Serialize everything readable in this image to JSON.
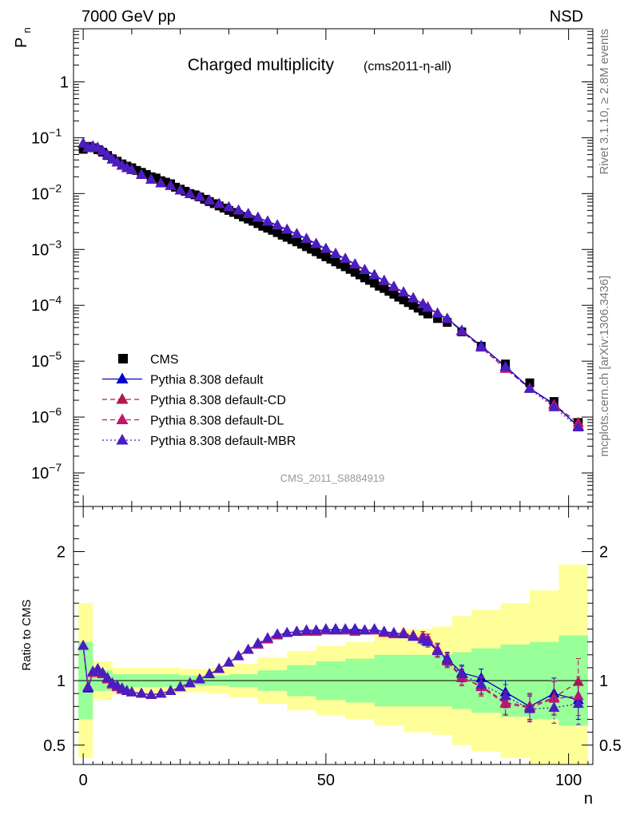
{
  "header": {
    "left": "7000 GeV pp",
    "right": "NSD"
  },
  "title": {
    "main": "Charged multiplicity",
    "sub": "(cms2011-η-all)"
  },
  "side_labels": {
    "rivet": "Rivet 3.1.10, ≥ 2.8M events",
    "mcplots": "mcplots.cern.ch [arXiv:1306.3436]"
  },
  "analysis_id": "CMS_2011_S8884919",
  "axes": {
    "top_ylabel_main": "P",
    "top_ylabel_sub": "n",
    "bottom_ylabel": "Ratio to CMS",
    "xlabel": "n",
    "top_yticks": [
      {
        "exp": -7,
        "label_base": "10",
        "label_exp": "−7"
      },
      {
        "exp": -6,
        "label_base": "10",
        "label_exp": "−6"
      },
      {
        "exp": -5,
        "label_base": "10",
        "label_exp": "−5"
      },
      {
        "exp": -4,
        "label_base": "10",
        "label_exp": "−4"
      },
      {
        "exp": -3,
        "label_base": "10",
        "label_exp": "−3"
      },
      {
        "exp": -2,
        "label_base": "10",
        "label_exp": "−2"
      },
      {
        "exp": -1,
        "label_base": "10",
        "label_exp": "−1"
      },
      {
        "exp": 0,
        "label_base": "1",
        "label_exp": ""
      }
    ],
    "ratio_yticks": [
      {
        "value": 0.5,
        "label": "0.5"
      },
      {
        "value": 1,
        "label": "1"
      },
      {
        "value": 2,
        "label": "2"
      }
    ],
    "xticks": [
      {
        "value": 0,
        "label": "0"
      },
      {
        "value": 50,
        "label": "50"
      },
      {
        "value": 100,
        "label": "100"
      }
    ]
  },
  "legend": [
    {
      "label": "CMS",
      "color": "#000000",
      "marker": "square",
      "line": "none"
    },
    {
      "label": "Pythia 8.308 default",
      "color": "#0000cc",
      "marker": "triangle",
      "line": "solid"
    },
    {
      "label": "Pythia 8.308 default-CD",
      "color": "#b3174d",
      "marker": "triangle",
      "line": "dashed"
    },
    {
      "label": "Pythia 8.308 default-DL",
      "color": "#c0176e",
      "marker": "triangle",
      "line": "dashed"
    },
    {
      "label": "Pythia 8.308 default-MBR",
      "color": "#4a1ec0",
      "marker": "triangle",
      "line": "dotted"
    }
  ],
  "chart_data": {
    "type": "scatter",
    "title": "Charged multiplicity",
    "xlabel": "n",
    "ylabel": "P_n",
    "xlim": [
      -2,
      105
    ],
    "ylim_log10": [
      -7.6,
      0.95
    ],
    "ratio_ylim": [
      0.35,
      2.35
    ],
    "yscale": "log",
    "legend_placement": "bottom-left",
    "data": {
      "name": "CMS",
      "x": [
        0,
        1,
        2,
        3,
        4,
        5,
        6,
        7,
        8,
        9,
        10,
        11,
        12,
        13,
        14,
        15,
        16,
        17,
        18,
        19,
        20,
        21,
        22,
        23,
        24,
        25,
        26,
        27,
        28,
        29,
        30,
        31,
        32,
        33,
        34,
        35,
        36,
        37,
        38,
        39,
        40,
        41,
        42,
        43,
        44,
        45,
        46,
        47,
        48,
        49,
        50,
        51,
        52,
        53,
        54,
        55,
        56,
        57,
        58,
        59,
        60,
        61,
        62,
        63,
        64,
        65,
        66,
        67,
        68,
        69,
        70,
        71,
        73,
        75,
        78,
        82,
        87,
        92,
        97,
        102
      ],
      "y": [
        0.062,
        0.07,
        0.066,
        0.061,
        0.055,
        0.048,
        0.042,
        0.038,
        0.034,
        0.031,
        0.029,
        0.026,
        0.024,
        0.022,
        0.02,
        0.019,
        0.017,
        0.016,
        0.015,
        0.013,
        0.012,
        0.011,
        0.01,
        0.0095,
        0.0087,
        0.0079,
        0.0072,
        0.0066,
        0.006,
        0.0055,
        0.005,
        0.0046,
        0.0042,
        0.0038,
        0.0035,
        0.0032,
        0.0029,
        0.0026,
        0.0024,
        0.0022,
        0.002,
        0.0018,
        0.00165,
        0.0015,
        0.00137,
        0.00124,
        0.00112,
        0.00101,
        0.00091,
        0.00082,
        0.00074,
        0.00067,
        0.0006,
        0.00054,
        0.00049,
        0.00044,
        0.00039,
        0.00035,
        0.00031,
        0.00028,
        0.00025,
        0.00022,
        0.0002,
        0.000178,
        0.000158,
        0.00014,
        0.000125,
        0.000112,
        0.0001,
        8.9e-05,
        7.9e-05,
        7e-05,
        5.8e-05,
        4.95e-05,
        3.35e-05,
        1.85e-05,
        8.9e-06,
        4.1e-06,
        1.9e-06,
        8e-07
      ]
    },
    "data_display_scale": 1.0,
    "ratio_series": [
      {
        "name": "Pythia 8.308 default",
        "x": [
          0,
          1,
          2,
          3,
          4,
          5,
          6,
          7,
          8,
          9,
          10,
          12,
          14,
          16,
          18,
          20,
          22,
          24,
          26,
          28,
          30,
          32,
          34,
          36,
          38,
          40,
          42,
          44,
          46,
          48,
          50,
          52,
          54,
          56,
          58,
          60,
          62,
          64,
          66,
          68,
          70,
          71,
          73,
          75,
          78,
          82,
          87,
          92,
          97,
          102
        ],
        "y": [
          1.27,
          0.94,
          1.07,
          1.09,
          1.06,
          1.02,
          0.98,
          0.96,
          0.94,
          0.92,
          0.91,
          0.9,
          0.89,
          0.9,
          0.92,
          0.95,
          0.98,
          1.01,
          1.05,
          1.09,
          1.14,
          1.19,
          1.24,
          1.28,
          1.32,
          1.35,
          1.37,
          1.38,
          1.39,
          1.39,
          1.39,
          1.4,
          1.39,
          1.4,
          1.39,
          1.39,
          1.38,
          1.37,
          1.36,
          1.34,
          1.32,
          1.3,
          1.23,
          1.17,
          1.06,
          1.02,
          0.91,
          0.8,
          0.9,
          0.85
        ],
        "err": [
          0,
          0,
          0,
          0,
          0,
          0,
          0,
          0,
          0,
          0,
          0,
          0,
          0,
          0,
          0,
          0,
          0,
          0,
          0,
          0,
          0,
          0,
          0,
          0,
          0,
          0,
          0,
          0,
          0,
          0,
          0,
          0,
          0,
          0,
          0,
          0,
          0,
          0,
          0,
          0,
          0.04,
          0.04,
          0.05,
          0.05,
          0.06,
          0.07,
          0.09,
          0.1,
          0.12,
          0.15
        ]
      },
      {
        "name": "Pythia 8.308 default-CD",
        "x": [
          0,
          1,
          2,
          3,
          4,
          5,
          6,
          7,
          8,
          9,
          10,
          12,
          14,
          16,
          18,
          20,
          22,
          24,
          26,
          28,
          30,
          32,
          34,
          36,
          38,
          40,
          42,
          44,
          46,
          48,
          50,
          52,
          54,
          56,
          58,
          60,
          62,
          64,
          66,
          68,
          70,
          71,
          73,
          75,
          78,
          82,
          87,
          92,
          97,
          102
        ],
        "y": [
          1.27,
          0.95,
          1.06,
          1.08,
          1.05,
          1.01,
          0.97,
          0.95,
          0.93,
          0.92,
          0.91,
          0.9,
          0.89,
          0.9,
          0.92,
          0.95,
          0.98,
          1.01,
          1.05,
          1.09,
          1.14,
          1.19,
          1.24,
          1.28,
          1.32,
          1.35,
          1.37,
          1.38,
          1.38,
          1.38,
          1.39,
          1.39,
          1.39,
          1.38,
          1.39,
          1.39,
          1.37,
          1.36,
          1.37,
          1.35,
          1.34,
          1.32,
          1.24,
          1.15,
          1.02,
          0.96,
          0.83,
          0.8,
          0.87,
          0.99
        ],
        "err": [
          0,
          0,
          0,
          0,
          0,
          0,
          0,
          0,
          0,
          0,
          0,
          0,
          0,
          0,
          0,
          0,
          0,
          0,
          0,
          0,
          0,
          0,
          0,
          0,
          0,
          0,
          0,
          0,
          0,
          0,
          0,
          0,
          0,
          0,
          0,
          0,
          0,
          0,
          0,
          0,
          0.04,
          0.04,
          0.05,
          0.05,
          0.06,
          0.07,
          0.09,
          0.1,
          0.13,
          0.18
        ]
      },
      {
        "name": "Pythia 8.308 default-DL",
        "x": [
          0,
          1,
          2,
          3,
          4,
          5,
          6,
          7,
          8,
          9,
          10,
          12,
          14,
          16,
          18,
          20,
          22,
          24,
          26,
          28,
          30,
          32,
          34,
          36,
          38,
          40,
          42,
          44,
          46,
          48,
          50,
          52,
          54,
          56,
          58,
          60,
          62,
          64,
          66,
          68,
          70,
          71,
          73,
          75,
          78,
          82,
          87,
          92,
          97,
          102
        ],
        "y": [
          1.27,
          0.95,
          1.06,
          1.08,
          1.05,
          1.01,
          0.97,
          0.95,
          0.93,
          0.92,
          0.91,
          0.9,
          0.89,
          0.9,
          0.92,
          0.95,
          0.98,
          1.01,
          1.05,
          1.09,
          1.14,
          1.19,
          1.24,
          1.28,
          1.32,
          1.35,
          1.37,
          1.38,
          1.38,
          1.38,
          1.39,
          1.39,
          1.39,
          1.38,
          1.39,
          1.39,
          1.37,
          1.36,
          1.37,
          1.35,
          1.34,
          1.32,
          1.24,
          1.16,
          1.03,
          0.95,
          0.82,
          0.79,
          0.86,
          0.88
        ],
        "err": [
          0,
          0,
          0,
          0,
          0,
          0,
          0,
          0,
          0,
          0,
          0,
          0,
          0,
          0,
          0,
          0,
          0,
          0,
          0,
          0,
          0,
          0,
          0,
          0,
          0,
          0,
          0,
          0,
          0,
          0,
          0,
          0,
          0,
          0,
          0,
          0,
          0,
          0,
          0,
          0,
          0.04,
          0.04,
          0.05,
          0.05,
          0.06,
          0.07,
          0.09,
          0.1,
          0.13,
          0.15
        ]
      },
      {
        "name": "Pythia 8.308 default-MBR",
        "x": [
          0,
          1,
          2,
          3,
          4,
          5,
          6,
          7,
          8,
          9,
          10,
          12,
          14,
          16,
          18,
          20,
          22,
          24,
          26,
          28,
          30,
          32,
          34,
          36,
          38,
          40,
          42,
          44,
          46,
          48,
          50,
          52,
          54,
          56,
          58,
          60,
          62,
          64,
          66,
          68,
          70,
          71,
          73,
          75,
          78,
          82,
          87,
          92,
          97,
          102
        ],
        "y": [
          1.27,
          0.95,
          1.07,
          1.09,
          1.06,
          1.02,
          0.98,
          0.96,
          0.94,
          0.92,
          0.91,
          0.9,
          0.89,
          0.9,
          0.92,
          0.95,
          0.98,
          1.01,
          1.05,
          1.09,
          1.14,
          1.19,
          1.24,
          1.29,
          1.33,
          1.36,
          1.37,
          1.38,
          1.39,
          1.39,
          1.4,
          1.39,
          1.4,
          1.39,
          1.39,
          1.4,
          1.38,
          1.37,
          1.36,
          1.34,
          1.32,
          1.3,
          1.23,
          1.16,
          1.05,
          0.97,
          0.88,
          0.78,
          0.79,
          0.82
        ],
        "err": [
          0,
          0,
          0,
          0,
          0,
          0,
          0,
          0,
          0,
          0,
          0,
          0,
          0,
          0,
          0,
          0,
          0,
          0,
          0,
          0,
          0,
          0,
          0,
          0,
          0,
          0,
          0,
          0,
          0,
          0,
          0,
          0,
          0,
          0,
          0,
          0,
          0,
          0,
          0,
          0,
          0.04,
          0.04,
          0.05,
          0.05,
          0.06,
          0.07,
          0.09,
          0.1,
          0.12,
          0.16
        ]
      }
    ],
    "uncertainty_bands": {
      "green_hw": [
        [
          -1,
          0.3
        ],
        [
          0.5,
          0.3
        ],
        [
          2,
          0.08
        ],
        [
          6,
          0.05
        ],
        [
          14,
          0.05
        ],
        [
          20,
          0.04
        ],
        [
          26,
          0.04
        ],
        [
          30,
          0.05
        ],
        [
          36,
          0.08
        ],
        [
          42,
          0.12
        ],
        [
          48,
          0.15
        ],
        [
          54,
          0.17
        ],
        [
          60,
          0.2
        ],
        [
          66,
          0.2
        ],
        [
          72,
          0.2
        ],
        [
          76,
          0.22
        ],
        [
          80,
          0.25
        ],
        [
          86,
          0.28
        ],
        [
          92,
          0.3
        ],
        [
          98,
          0.35
        ],
        [
          104,
          0.45
        ]
      ],
      "yellow_hw": [
        [
          -1,
          0.6
        ],
        [
          0.5,
          0.6
        ],
        [
          2,
          0.15
        ],
        [
          6,
          0.1
        ],
        [
          14,
          0.1
        ],
        [
          20,
          0.09
        ],
        [
          26,
          0.1
        ],
        [
          30,
          0.13
        ],
        [
          36,
          0.18
        ],
        [
          42,
          0.23
        ],
        [
          48,
          0.27
        ],
        [
          54,
          0.3
        ],
        [
          60,
          0.35
        ],
        [
          66,
          0.4
        ],
        [
          72,
          0.42
        ],
        [
          76,
          0.5
        ],
        [
          80,
          0.55
        ],
        [
          86,
          0.6
        ],
        [
          92,
          0.7
        ],
        [
          98,
          0.9
        ],
        [
          104,
          1.1
        ]
      ]
    }
  }
}
